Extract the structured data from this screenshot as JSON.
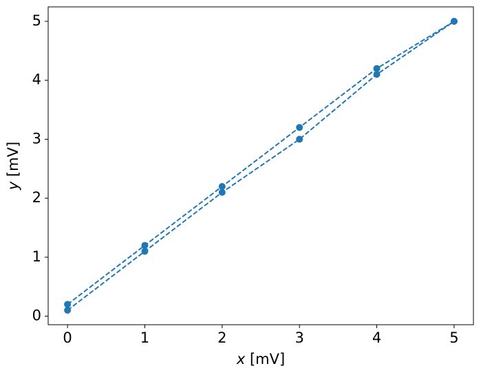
{
  "chart_data": {
    "type": "line",
    "xlabel": "x [mV]",
    "ylabel": "y [mV]",
    "x": [
      0,
      1,
      2,
      3,
      4,
      5
    ],
    "series": [
      {
        "color": "#1f77b4",
        "values": [
          0.2,
          1.2,
          2.2,
          3.2,
          4.2,
          5.0
        ]
      },
      {
        "color": "#1f77b4",
        "values": [
          0.1,
          1.1,
          2.1,
          3.0,
          4.1,
          5.0
        ]
      }
    ],
    "line_style": "dashed",
    "marker": "circle",
    "xlim": [
      -0.25,
      5.25
    ],
    "xticks": [
      0,
      1,
      2,
      3,
      4,
      5
    ],
    "ylim": [
      -0.145,
      5.245
    ],
    "yticks": [
      0,
      1,
      2,
      3,
      4,
      5
    ],
    "grid": false
  }
}
